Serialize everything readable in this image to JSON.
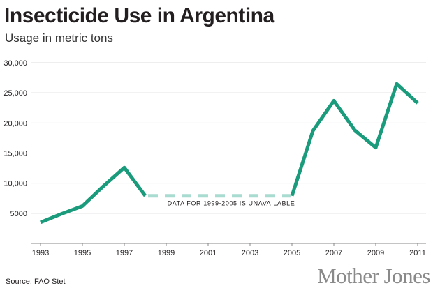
{
  "title": "Insecticide Use in Argentina",
  "subtitle": "Usage in metric tons",
  "source": "Source: FAO Stet",
  "brand": "Mother Jones",
  "colors": {
    "line": "#1a9b7b",
    "gap": "#a8dcd0",
    "grid": "#dddddd",
    "axis": "#888888"
  },
  "chart_data": {
    "type": "line",
    "title": "Insecticide Use in Argentina",
    "subtitle": "Usage in metric tons",
    "xlabel": "",
    "ylabel": "",
    "xlim": [
      1992.6,
      2011.4
    ],
    "ylim": [
      0,
      30000
    ],
    "grid": true,
    "x_ticks": [
      1993,
      1995,
      1997,
      1999,
      2001,
      2003,
      2005,
      2007,
      2009,
      2011
    ],
    "x_tick_labels": [
      "1993",
      "1995",
      "1997",
      "1999",
      "2001",
      "2003",
      "2005",
      "2007",
      "2009",
      "2011"
    ],
    "y_ticks": [
      5000,
      10000,
      15000,
      20000,
      25000,
      30000
    ],
    "y_tick_labels": [
      "5000",
      "10,000",
      "15,000",
      "20,000",
      "25,000",
      "30,000"
    ],
    "series": [
      {
        "x": [
          1993,
          1994,
          1995,
          1996,
          1997,
          1998
        ],
        "values": [
          3500,
          4900,
          6200,
          9500,
          12600,
          7900
        ]
      },
      {
        "x": [
          2005,
          2006,
          2007,
          2008,
          2009,
          2010,
          2011
        ],
        "values": [
          7900,
          18700,
          23700,
          18800,
          15900,
          26500,
          23300
        ]
      }
    ],
    "gap": {
      "x": [
        1998,
        2005
      ],
      "value": 7900,
      "style": "dashed"
    },
    "annotations": [
      {
        "text": "DATA FOR 1999-2005 IS UNAVAILABLE",
        "x": 2002.1,
        "y": 6800
      }
    ]
  }
}
